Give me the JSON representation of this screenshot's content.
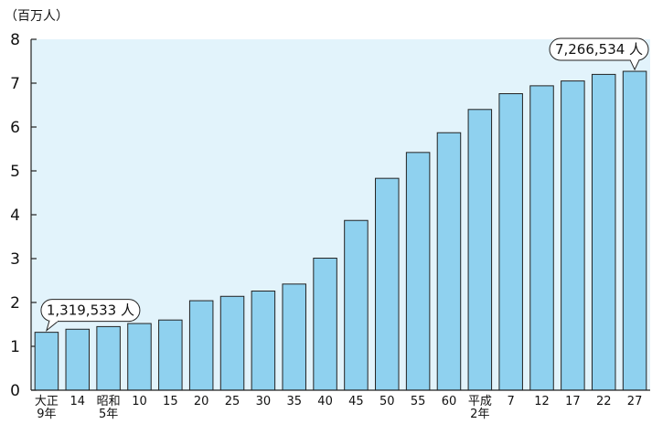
{
  "unit_label": "（百万人）",
  "chart_data": {
    "type": "bar",
    "categories": [
      [
        "大正",
        "9年"
      ],
      [
        "14"
      ],
      [
        "昭和",
        "5年"
      ],
      [
        "10"
      ],
      [
        "15"
      ],
      [
        "20"
      ],
      [
        "25"
      ],
      [
        "30"
      ],
      [
        "35"
      ],
      [
        "40"
      ],
      [
        "45"
      ],
      [
        "50"
      ],
      [
        "55"
      ],
      [
        "60"
      ],
      [
        "平成",
        "2年"
      ],
      [
        "7"
      ],
      [
        "12"
      ],
      [
        "17"
      ],
      [
        "22"
      ],
      [
        "27"
      ]
    ],
    "values": [
      1.32,
      1.39,
      1.45,
      1.52,
      1.6,
      2.04,
      2.14,
      2.26,
      2.42,
      3.01,
      3.87,
      4.83,
      5.42,
      5.87,
      6.4,
      6.76,
      6.94,
      7.05,
      7.2,
      7.27
    ],
    "ylim": [
      0,
      8
    ],
    "yticks": [
      0,
      1,
      2,
      3,
      4,
      5,
      6,
      7,
      8
    ],
    "bar_color": "#8fd1ef",
    "plot_bg": "#e2f3fb",
    "grid": false,
    "annotations": [
      {
        "text": "1,319,533 人",
        "index": 0
      },
      {
        "text": "7,266,534 人",
        "index": 19
      }
    ]
  }
}
